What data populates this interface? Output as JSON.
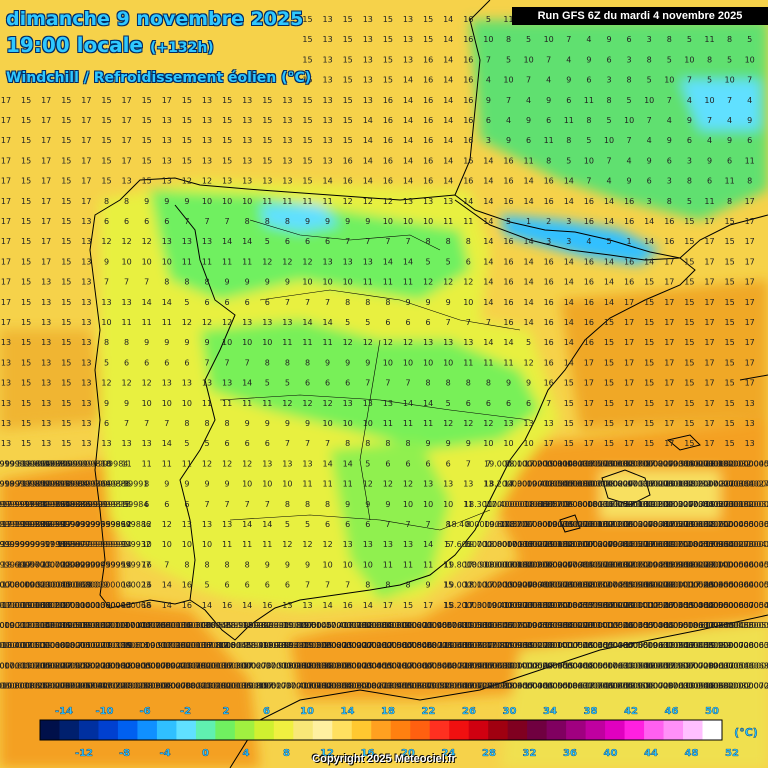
{
  "header": {
    "date": "dimanche 9 novembre 2025",
    "time": "19:00 locale",
    "offset": "(+132h)",
    "parameter": "Windchill / Refroidissement éolien (°C)"
  },
  "run_label": "Run GFS 6Z du mardi 4 novembre 2025",
  "copyright": "Copyright 2025 Meteociel.fr",
  "legend": {
    "unit": "(°C)",
    "top_labels": [
      "-14",
      "-10",
      "-6",
      "-2",
      "2",
      "6",
      "10",
      "14",
      "18",
      "22",
      "26",
      "30",
      "34",
      "38",
      "42",
      "46",
      "50"
    ],
    "bottom_labels": [
      "-12",
      "-8",
      "-4",
      "0",
      "4",
      "8",
      "12",
      "16",
      "20",
      "24",
      "28",
      "32",
      "36",
      "40",
      "44",
      "48",
      "52"
    ],
    "colors": [
      "#00104a",
      "#00206e",
      "#0030a0",
      "#0040d0",
      "#0060f0",
      "#1090ff",
      "#30c0ff",
      "#60e0ff",
      "#60f0b0",
      "#70f060",
      "#a0f040",
      "#d0f030",
      "#f0f040",
      "#f8e878",
      "#fff0a0",
      "#ffe060",
      "#ffc830",
      "#ffa020",
      "#ff8010",
      "#ff6010",
      "#ff3020",
      "#f01010",
      "#d00010",
      "#a00010",
      "#800020",
      "#700040",
      "#800060",
      "#a00080",
      "#c000a0",
      "#e000c0",
      "#ff20e0",
      "#ff60f0",
      "#ff90f8",
      "#ffc0ff",
      "#ffffff"
    ]
  },
  "palette": {
    "sea_warm": "#f4a020",
    "sea_mild": "#f6d24a",
    "land_cool": "#70f060",
    "land_mild": "#d8f040",
    "cold_core": "#30c0ff",
    "border_line": "#000000"
  }
}
